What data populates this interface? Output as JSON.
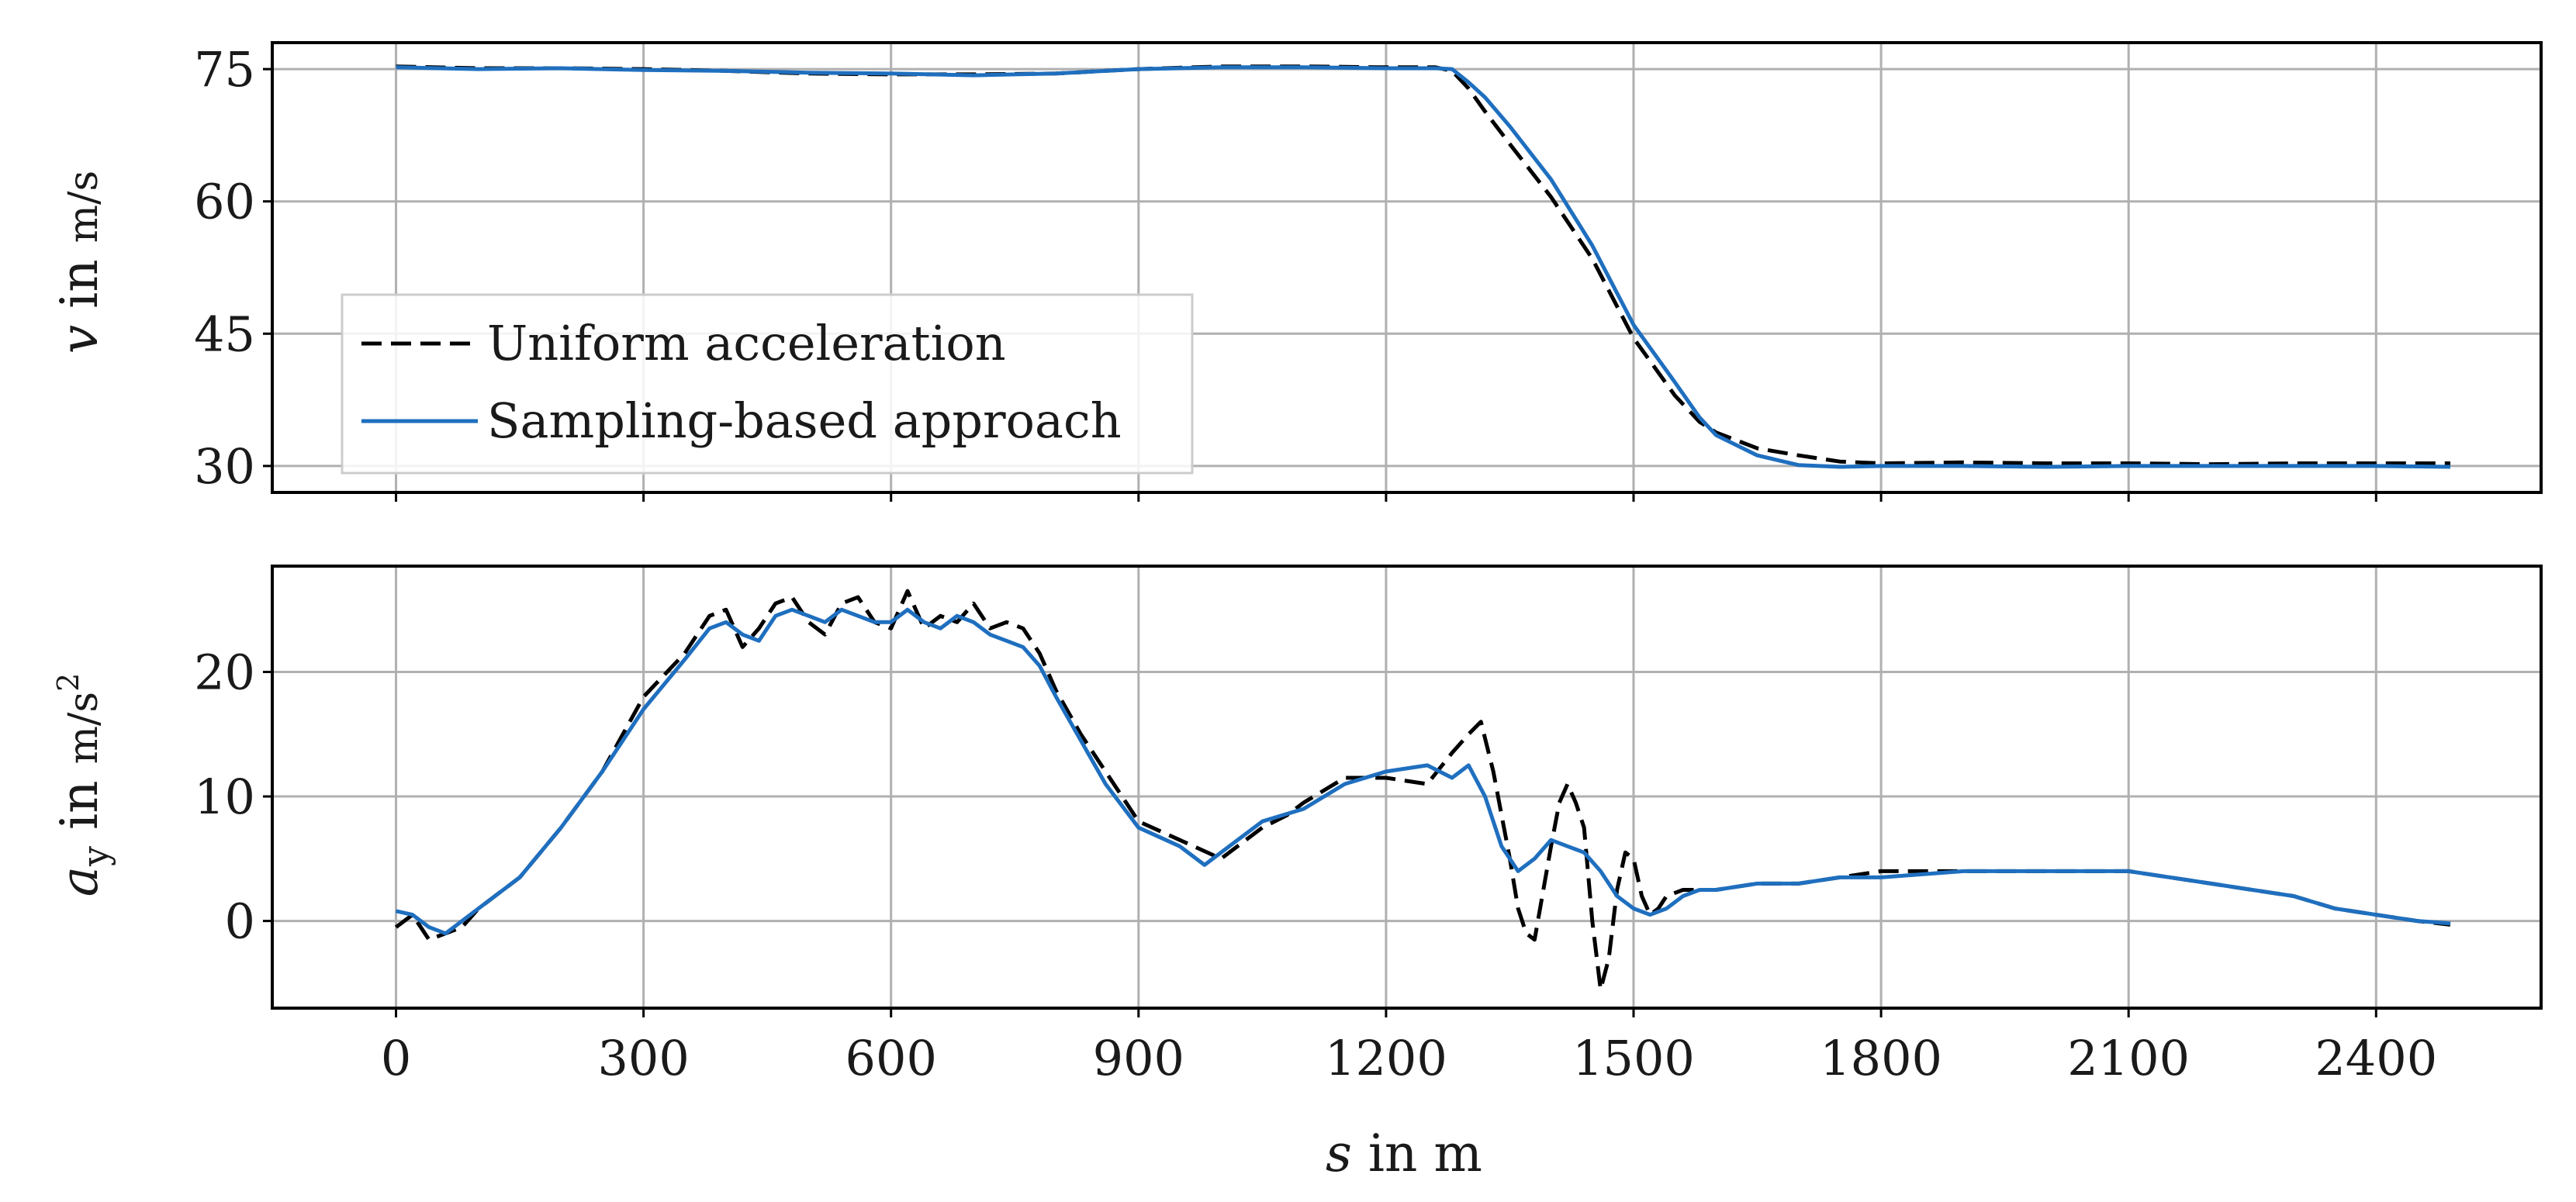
{
  "chart_data": [
    {
      "type": "line",
      "ylim": [
        27,
        78
      ],
      "xlim": [
        -150,
        2600
      ],
      "y_ticks": [
        "30",
        "45",
        "60",
        "75"
      ],
      "ylabel": {
        "symbol": "v",
        "text": " in ",
        "unit": "m/s"
      },
      "grid": true,
      "legend_position": "lower-left",
      "series": [
        {
          "name": "Uniform acceleration",
          "color": "#000000",
          "style": "dashed",
          "x": [
            0,
            100,
            200,
            300,
            400,
            500,
            600,
            700,
            800,
            900,
            1000,
            1100,
            1200,
            1260,
            1280,
            1300,
            1320,
            1350,
            1400,
            1450,
            1500,
            1550,
            1580,
            1600,
            1650,
            1700,
            1750,
            1800,
            1900,
            2000,
            2100,
            2200,
            2300,
            2400,
            2490
          ],
          "y": [
            75.3,
            75.1,
            75.1,
            75.0,
            74.8,
            74.5,
            74.4,
            74.4,
            74.5,
            75.0,
            75.3,
            75.3,
            75.2,
            75.2,
            74.8,
            72.8,
            70.2,
            66.5,
            60.5,
            53.5,
            44.5,
            38.0,
            35.0,
            33.8,
            32.0,
            31.2,
            30.5,
            30.3,
            30.4,
            30.3,
            30.3,
            30.2,
            30.3,
            30.3,
            30.3
          ]
        },
        {
          "name": "Sampling-based approach",
          "color": "#1f6fbf",
          "style": "solid",
          "x": [
            0,
            100,
            200,
            300,
            400,
            500,
            600,
            700,
            800,
            900,
            1000,
            1100,
            1200,
            1260,
            1280,
            1300,
            1320,
            1350,
            1400,
            1450,
            1500,
            1550,
            1580,
            1600,
            1650,
            1700,
            1750,
            1800,
            1900,
            2000,
            2100,
            2200,
            2300,
            2400,
            2490
          ],
          "y": [
            75.2,
            75.0,
            75.1,
            74.9,
            74.8,
            74.6,
            74.5,
            74.3,
            74.5,
            75.0,
            75.2,
            75.2,
            75.1,
            75.1,
            75.0,
            73.5,
            71.8,
            68.5,
            62.5,
            55.0,
            46.0,
            39.5,
            35.5,
            33.5,
            31.2,
            30.1,
            29.9,
            30.0,
            30.0,
            29.9,
            30.0,
            30.0,
            30.0,
            30.0,
            29.9
          ]
        }
      ]
    },
    {
      "type": "line",
      "ylim": [
        -7,
        28.5
      ],
      "xlim": [
        -150,
        2600
      ],
      "y_ticks": [
        "0",
        "10",
        "20"
      ],
      "x_ticks": [
        "0",
        "300",
        "600",
        "900",
        "1200",
        "1500",
        "1800",
        "2100",
        "2400"
      ],
      "xlabel": {
        "symbol": "s",
        "text": " in m"
      },
      "ylabel": {
        "symbol": "a",
        "subscript": "y",
        "text": " in ",
        "unit": "m/s",
        "superscript": "2"
      },
      "grid": true,
      "series": [
        {
          "name": "Uniform acceleration",
          "color": "#000000",
          "style": "dashed",
          "x": [
            0,
            20,
            40,
            60,
            80,
            100,
            150,
            200,
            250,
            300,
            350,
            380,
            400,
            420,
            440,
            460,
            480,
            500,
            520,
            540,
            560,
            580,
            600,
            620,
            640,
            660,
            680,
            700,
            720,
            740,
            760,
            780,
            800,
            830,
            860,
            900,
            950,
            1000,
            1050,
            1080,
            1100,
            1150,
            1200,
            1250,
            1280,
            1300,
            1315,
            1330,
            1350,
            1360,
            1370,
            1380,
            1400,
            1410,
            1420,
            1430,
            1440,
            1450,
            1460,
            1470,
            1480,
            1490,
            1500,
            1510,
            1520,
            1530,
            1540,
            1560,
            1580,
            1600,
            1650,
            1700,
            1750,
            1800,
            1900,
            2000,
            2050,
            2100,
            2150,
            2200,
            2250,
            2300,
            2350,
            2400,
            2450,
            2490
          ],
          "y": [
            -0.5,
            0.5,
            -1.5,
            -1.0,
            -0.5,
            1.0,
            3.5,
            7.5,
            12.0,
            18.0,
            21.5,
            24.5,
            25.0,
            22.0,
            23.5,
            25.5,
            26.0,
            24.0,
            23.0,
            25.5,
            26.0,
            24.0,
            23.5,
            26.5,
            23.5,
            24.5,
            24.0,
            25.5,
            23.5,
            24.0,
            23.5,
            21.5,
            18.5,
            15.0,
            12.0,
            8.0,
            6.5,
            5.0,
            7.5,
            8.5,
            9.5,
            11.5,
            11.5,
            11.0,
            13.5,
            15.0,
            16.0,
            12.0,
            5.0,
            1.0,
            -1.0,
            -1.5,
            6.0,
            9.5,
            11.0,
            9.5,
            7.5,
            0.0,
            -5.5,
            -3.0,
            2.5,
            5.5,
            5.0,
            2.0,
            0.5,
            1.0,
            2.0,
            2.5,
            2.5,
            2.5,
            3.0,
            3.0,
            3.5,
            4.0,
            4.0,
            4.0,
            4.0,
            4.0,
            3.5,
            3.0,
            2.5,
            2.0,
            1.0,
            0.5,
            0.0,
            -0.3
          ]
        },
        {
          "name": "Sampling-based approach",
          "color": "#1f6fbf",
          "style": "solid",
          "x": [
            0,
            20,
            40,
            60,
            80,
            100,
            150,
            200,
            250,
            300,
            350,
            380,
            400,
            420,
            440,
            460,
            480,
            500,
            520,
            540,
            560,
            580,
            600,
            620,
            640,
            660,
            680,
            700,
            720,
            740,
            760,
            780,
            800,
            830,
            860,
            900,
            950,
            980,
            1000,
            1050,
            1100,
            1150,
            1200,
            1250,
            1280,
            1300,
            1320,
            1340,
            1360,
            1380,
            1400,
            1420,
            1440,
            1460,
            1480,
            1500,
            1520,
            1540,
            1560,
            1580,
            1600,
            1650,
            1700,
            1750,
            1800,
            1900,
            2000,
            2050,
            2100,
            2150,
            2200,
            2250,
            2300,
            2350,
            2400,
            2450,
            2490
          ],
          "y": [
            0.8,
            0.5,
            -0.5,
            -1.0,
            0.0,
            1.0,
            3.5,
            7.5,
            12.0,
            17.0,
            21.0,
            23.5,
            24.0,
            23.0,
            22.5,
            24.5,
            25.0,
            24.5,
            24.0,
            25.0,
            24.5,
            24.0,
            24.0,
            25.0,
            24.0,
            23.5,
            24.5,
            24.0,
            23.0,
            22.5,
            22.0,
            20.5,
            18.0,
            14.5,
            11.0,
            7.5,
            6.0,
            4.5,
            5.5,
            8.0,
            9.0,
            11.0,
            12.0,
            12.5,
            11.5,
            12.5,
            10.0,
            6.0,
            4.0,
            5.0,
            6.5,
            6.0,
            5.5,
            4.0,
            2.0,
            1.0,
            0.5,
            1.0,
            2.0,
            2.5,
            2.5,
            3.0,
            3.0,
            3.5,
            3.5,
            4.0,
            4.0,
            4.0,
            4.0,
            3.5,
            3.0,
            2.5,
            2.0,
            1.0,
            0.5,
            0.0,
            -0.2
          ]
        }
      ]
    }
  ]
}
